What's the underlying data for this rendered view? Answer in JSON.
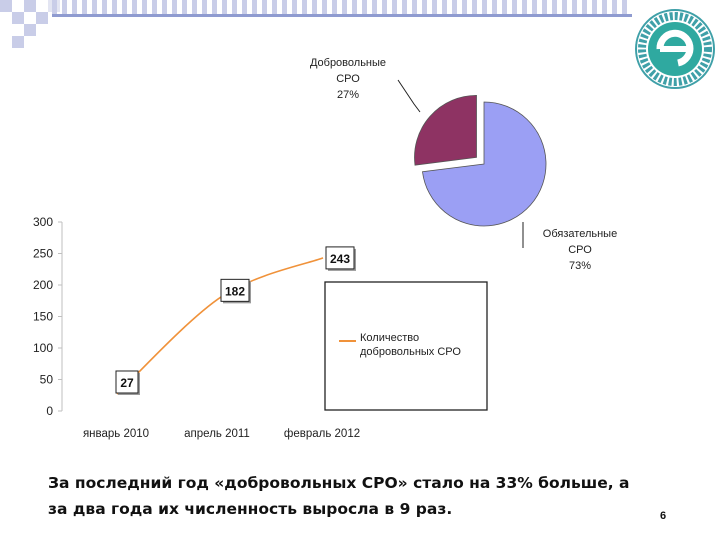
{
  "chart_data": [
    {
      "type": "pie",
      "slices": [
        {
          "label": "Добровольные\nСРО",
          "value": 27,
          "value_label": "27%",
          "color": "#8e3363",
          "exploded": true
        },
        {
          "label": "Обязательные\nСРО",
          "value": 73,
          "value_label": "73%",
          "color": "#9b9ff4",
          "exploded": false
        }
      ]
    },
    {
      "type": "line",
      "categories": [
        "январь 2010",
        "апрель 2011",
        "февраль 2012"
      ],
      "series": [
        {
          "name": "Количество добровольных СРО",
          "color": "#f0923a",
          "points": [
            27,
            182,
            243
          ],
          "point_labels": [
            "27",
            "182",
            "243"
          ]
        }
      ],
      "ylim": [
        0,
        300
      ],
      "yticks": [
        "0",
        "50",
        "100",
        "150",
        "200",
        "250",
        "300"
      ],
      "legend": {
        "text_line1": "Количество",
        "text_line2": "добровольных СРО",
        "position": "right-inside"
      }
    }
  ],
  "caption": "За последний год «добровольных СРО» стало на 33% больше, а за два года их численность выросла в 9 раз.",
  "page_number": "6"
}
